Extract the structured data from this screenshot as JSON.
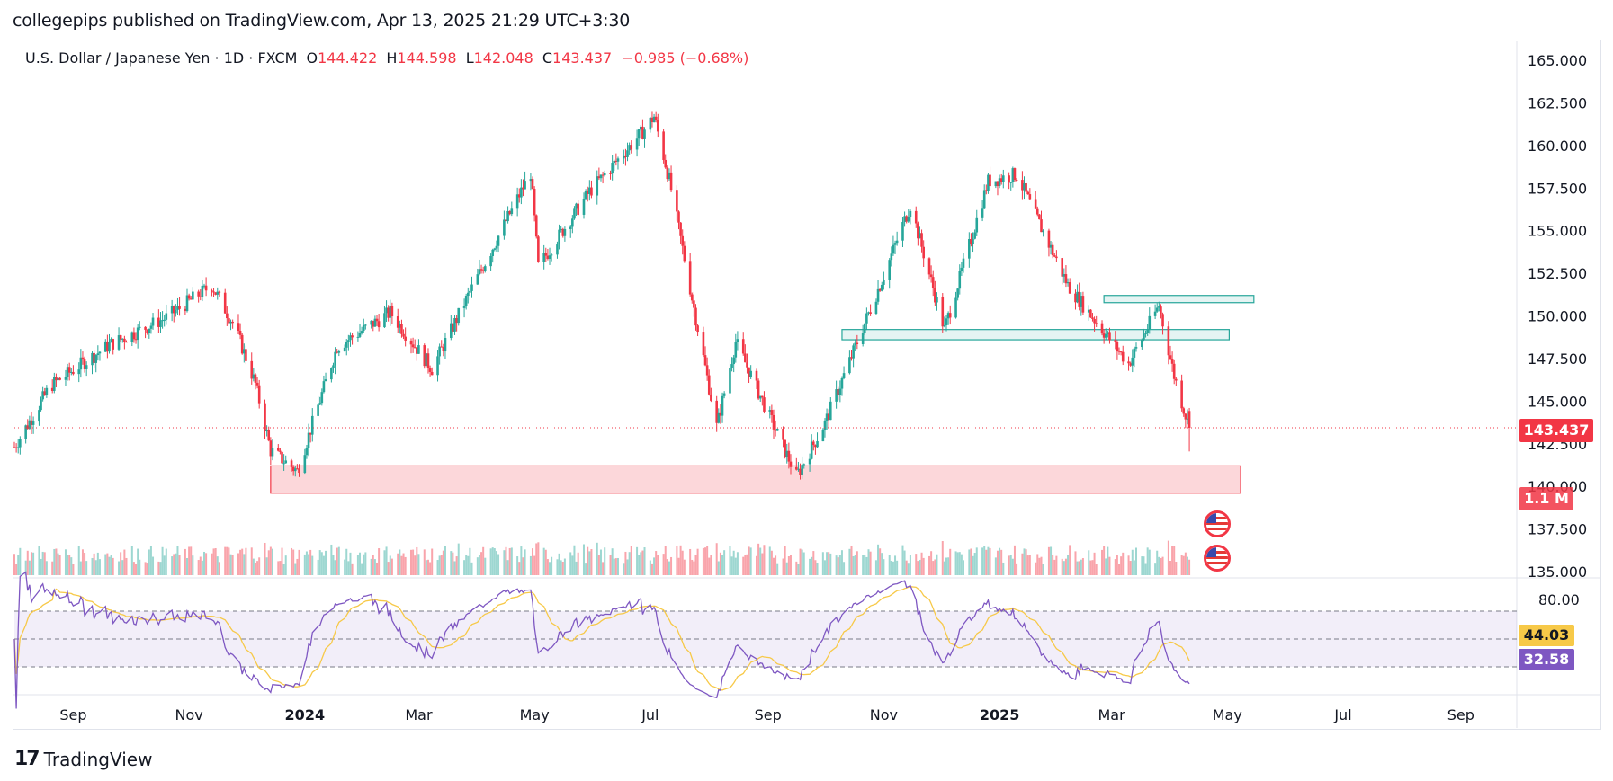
{
  "header": {
    "published": "collegepips published on TradingView.com, Apr 13, 2025 21:29 UTC+3:30"
  },
  "legend": {
    "symbol": "U.S. Dollar / Japanese Yen · 1D · FXCM",
    "o_label": "O",
    "o_value": "144.422",
    "h_label": "H",
    "h_value": "144.598",
    "l_label": "L",
    "l_value": "142.048",
    "c_label": "C",
    "c_value": "143.437",
    "change": "−0.985 (−0.68%)"
  },
  "badges": {
    "last_price": "143.437",
    "volume": "1.1 M",
    "rsi_ma": "44.03",
    "rsi": "32.58"
  },
  "footer": {
    "brand": "TradingView",
    "logo": "17"
  },
  "colors": {
    "up": "#26a69a",
    "down": "#f23645",
    "rsi_line": "#7e57c2",
    "rsi_ma": "#f7c948",
    "zone_red": "#f23645",
    "zone_teal": "#26a69a"
  },
  "chart_data": {
    "type": "candlestick",
    "title": "U.S. Dollar / Japanese Yen · 1D · FXCM",
    "y_ticks": [
      "165.000",
      "162.500",
      "160.000",
      "157.500",
      "155.000",
      "152.500",
      "150.000",
      "147.500",
      "145.000",
      "142.500",
      "140.000",
      "137.500",
      "135.000"
    ],
    "ylim": [
      135.0,
      165.0
    ],
    "x_ticks": [
      "Sep",
      "Nov",
      "2024",
      "Mar",
      "May",
      "Jul",
      "Sep",
      "Nov",
      "2025",
      "Mar",
      "May",
      "Jul",
      "Sep"
    ],
    "x_tick_bold": [
      false,
      false,
      true,
      false,
      false,
      false,
      false,
      false,
      true,
      false,
      false,
      false,
      false
    ],
    "price_path": [
      {
        "date": "2023-08-01",
        "close": 142.3
      },
      {
        "date": "2023-08-20",
        "close": 145.9
      },
      {
        "date": "2023-09-20",
        "close": 148.3
      },
      {
        "date": "2023-10-20",
        "close": 149.9
      },
      {
        "date": "2023-11-13",
        "close": 151.8
      },
      {
        "date": "2023-11-25",
        "close": 149.4
      },
      {
        "date": "2023-12-06",
        "close": 146.0
      },
      {
        "date": "2023-12-14",
        "close": 142.1
      },
      {
        "date": "2023-12-28",
        "close": 140.9
      },
      {
        "date": "2024-01-18",
        "close": 148.2
      },
      {
        "date": "2024-02-15",
        "close": 150.2
      },
      {
        "date": "2024-03-08",
        "close": 146.9
      },
      {
        "date": "2024-03-28",
        "close": 151.4
      },
      {
        "date": "2024-04-29",
        "close": 158.4
      },
      {
        "date": "2024-05-03",
        "close": 152.9
      },
      {
        "date": "2024-05-30",
        "close": 157.3
      },
      {
        "date": "2024-06-27",
        "close": 160.8
      },
      {
        "date": "2024-07-03",
        "close": 161.7
      },
      {
        "date": "2024-07-11",
        "close": 158.0
      },
      {
        "date": "2024-08-05",
        "close": 143.5
      },
      {
        "date": "2024-08-15",
        "close": 148.5
      },
      {
        "date": "2024-09-16",
        "close": 140.6
      },
      {
        "date": "2024-10-01",
        "close": 143.7
      },
      {
        "date": "2024-10-31",
        "close": 152.1
      },
      {
        "date": "2024-11-15",
        "close": 156.5
      },
      {
        "date": "2024-12-03",
        "close": 149.2
      },
      {
        "date": "2024-12-26",
        "close": 157.9
      },
      {
        "date": "2025-01-10",
        "close": 158.3
      },
      {
        "date": "2025-02-06",
        "close": 151.8
      },
      {
        "date": "2025-03-10",
        "close": 147.2
      },
      {
        "date": "2025-03-26",
        "close": 150.6
      },
      {
        "date": "2025-04-03",
        "close": 146.5
      },
      {
        "date": "2025-04-11",
        "close": 143.4
      }
    ],
    "zones": [
      {
        "kind": "support",
        "from": "2023-12-14",
        "to": "2025-05-08",
        "low": 139.6,
        "high": 141.2,
        "color": "red"
      },
      {
        "kind": "resistance",
        "from": "2024-10-10",
        "to": "2025-05-02",
        "low": 148.6,
        "high": 149.2,
        "color": "teal"
      },
      {
        "kind": "resistance",
        "from": "2025-02-25",
        "to": "2025-05-15",
        "low": 150.8,
        "high": 151.2,
        "color": "teal"
      }
    ],
    "last_close": 143.437,
    "rsi": {
      "levels": [
        70,
        50,
        30
      ],
      "label_top": "80.00",
      "last": 32.58,
      "ma_last": 44.03
    }
  }
}
